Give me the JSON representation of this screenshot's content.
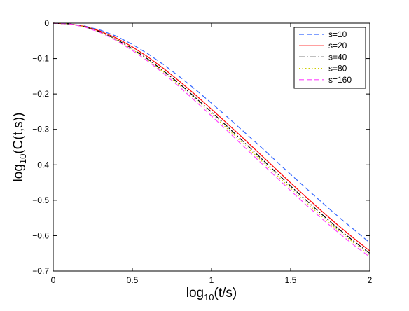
{
  "chart_data": {
    "type": "line",
    "title": "",
    "xlabel_base": "log",
    "xlabel_sub": "10",
    "xlabel_tail": "(t/s)",
    "ylabel_base": "log",
    "ylabel_sub": "10",
    "ylabel_tail": "(C(t,s))",
    "xlim": [
      0,
      2
    ],
    "ylim": [
      -0.7,
      0
    ],
    "xticks": [
      0,
      0.5,
      1,
      1.5,
      2
    ],
    "xtick_labels": [
      "0",
      "0.5",
      "1",
      "1.5",
      "2"
    ],
    "yticks": [
      0,
      -0.1,
      -0.2,
      -0.3,
      -0.4,
      -0.5,
      -0.6,
      -0.7
    ],
    "ytick_labels": [
      "0",
      "−0.1",
      "−0.2",
      "−0.3",
      "−0.4",
      "−0.5",
      "−0.6",
      "−0.7"
    ],
    "grid": false,
    "legend_position": "top-right",
    "series": [
      {
        "name": "s=10",
        "color": "#3366ff",
        "style": "dashed",
        "x": [
          0,
          0.1,
          0.2,
          0.3,
          0.4,
          0.5,
          0.6,
          0.7,
          0.8,
          0.9,
          1.0,
          1.1,
          1.2,
          1.3,
          1.4,
          1.5,
          1.6,
          1.7,
          1.8,
          1.9,
          2.0
        ],
        "y": [
          0,
          -0.002,
          -0.008,
          -0.02,
          -0.037,
          -0.06,
          -0.087,
          -0.118,
          -0.152,
          -0.188,
          -0.226,
          -0.265,
          -0.305,
          -0.345,
          -0.386,
          -0.427,
          -0.467,
          -0.507,
          -0.546,
          -0.583,
          -0.62
        ]
      },
      {
        "name": "s=20",
        "color": "#ff0000",
        "style": "solid",
        "x": [
          0,
          0.1,
          0.2,
          0.3,
          0.4,
          0.5,
          0.6,
          0.7,
          0.8,
          0.9,
          1.0,
          1.1,
          1.2,
          1.3,
          1.4,
          1.5,
          1.6,
          1.7,
          1.8,
          1.9,
          2.0
        ],
        "y": [
          0,
          -0.002,
          -0.009,
          -0.023,
          -0.042,
          -0.067,
          -0.096,
          -0.129,
          -0.165,
          -0.203,
          -0.243,
          -0.284,
          -0.325,
          -0.367,
          -0.409,
          -0.451,
          -0.492,
          -0.532,
          -0.571,
          -0.608,
          -0.643
        ]
      },
      {
        "name": "s=40",
        "color": "#000000",
        "style": "dashdot",
        "x": [
          0,
          0.1,
          0.2,
          0.3,
          0.4,
          0.5,
          0.6,
          0.7,
          0.8,
          0.9,
          1.0,
          1.1,
          1.2,
          1.3,
          1.4,
          1.5,
          1.6,
          1.7,
          1.8,
          1.9,
          2.0
        ],
        "y": [
          0,
          -0.002,
          -0.01,
          -0.025,
          -0.046,
          -0.072,
          -0.102,
          -0.136,
          -0.172,
          -0.211,
          -0.251,
          -0.292,
          -0.334,
          -0.376,
          -0.418,
          -0.46,
          -0.501,
          -0.541,
          -0.58,
          -0.616,
          -0.65
        ]
      },
      {
        "name": "s=80",
        "color": "#cccc00",
        "style": "dotted",
        "x": [
          0,
          0.1,
          0.2,
          0.3,
          0.4,
          0.5,
          0.6,
          0.7,
          0.8,
          0.9,
          1.0,
          1.1,
          1.2,
          1.3,
          1.4,
          1.5,
          1.6,
          1.7,
          1.8,
          1.9,
          2.0
        ],
        "y": [
          0,
          -0.002,
          -0.01,
          -0.026,
          -0.047,
          -0.074,
          -0.105,
          -0.139,
          -0.176,
          -0.215,
          -0.256,
          -0.298,
          -0.34,
          -0.382,
          -0.424,
          -0.466,
          -0.507,
          -0.547,
          -0.585,
          -0.621,
          -0.655
        ]
      },
      {
        "name": "s=160",
        "color": "#ff44ff",
        "style": "dashed",
        "x": [
          0,
          0.1,
          0.2,
          0.3,
          0.4,
          0.5,
          0.6,
          0.7,
          0.8,
          0.9,
          1.0,
          1.1,
          1.2,
          1.3,
          1.4,
          1.5,
          1.6,
          1.7,
          1.8,
          1.9,
          2.0
        ],
        "y": [
          0,
          -0.002,
          -0.011,
          -0.027,
          -0.049,
          -0.077,
          -0.108,
          -0.143,
          -0.181,
          -0.221,
          -0.262,
          -0.304,
          -0.347,
          -0.389,
          -0.431,
          -0.473,
          -0.514,
          -0.553,
          -0.591,
          -0.627,
          -0.66
        ]
      }
    ]
  }
}
